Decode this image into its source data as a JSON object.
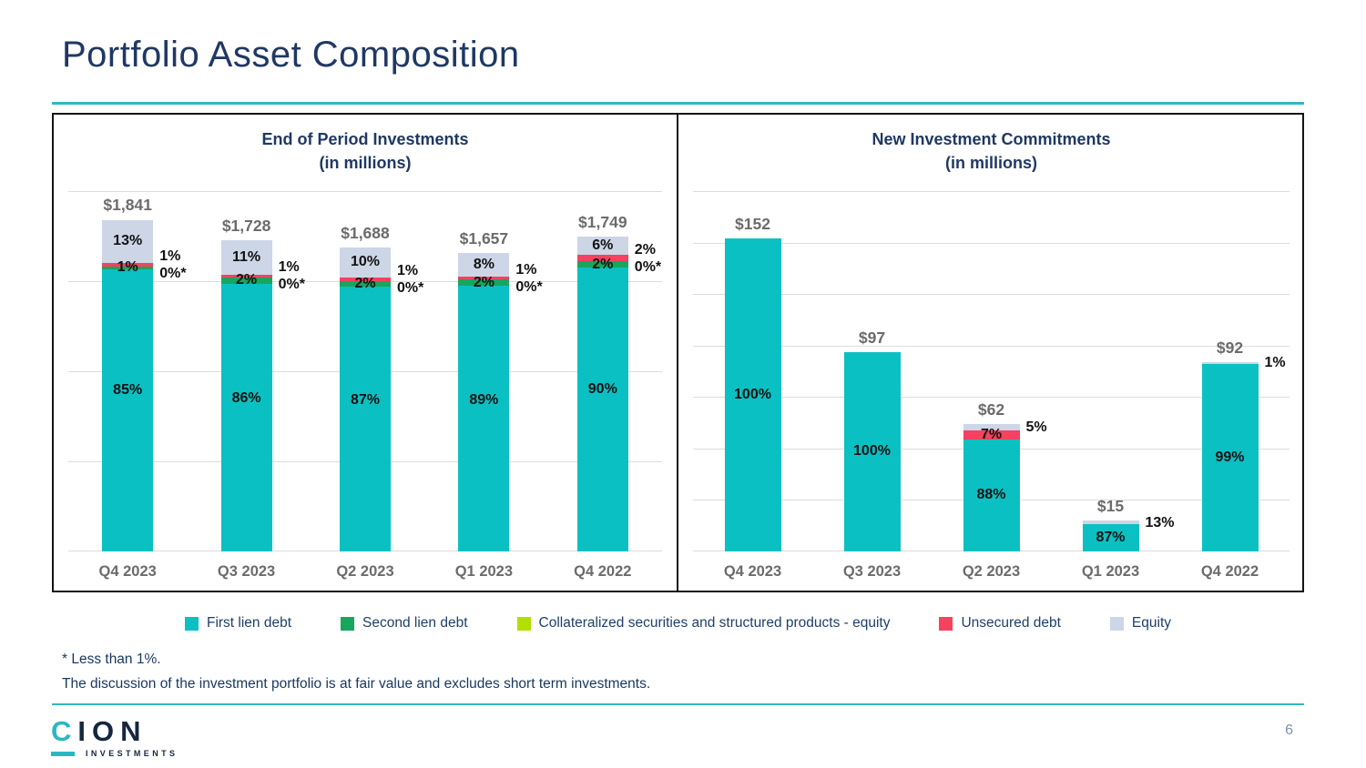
{
  "page": {
    "title": "Portfolio Asset Composition",
    "footnote1": "* Less than 1%.",
    "footnote2": "The discussion of the investment portfolio is at fair value and excludes short term investments.",
    "page_number": "6",
    "logo_c": "C",
    "logo_rest": "ION",
    "logo_sub": "INVESTMENTS"
  },
  "colors": {
    "first_lien": "#0bc0c3",
    "second_lien": "#18a55e",
    "collateralized": "#b2de00",
    "unsecured": "#f4425f",
    "equity": "#ccd6e6",
    "navy": "#1f3864",
    "gray_label": "#6b6b6b",
    "gridline": "#dcdcdc",
    "teal_rule": "#31b7c4"
  },
  "legend": [
    {
      "key": "first_lien",
      "label": "First lien debt"
    },
    {
      "key": "second_lien",
      "label": "Second lien debt"
    },
    {
      "key": "collateralized",
      "label": "Collateralized securities and structured products - equity"
    },
    {
      "key": "unsecured",
      "label": "Unsecured debt"
    },
    {
      "key": "equity",
      "label": "Equity"
    }
  ],
  "chart_data": [
    {
      "type": "bar",
      "stacked": true,
      "title": "End of Period Investments",
      "subtitle": "(in millions)",
      "ylim": [
        0,
        2000
      ],
      "gridline_step": 500,
      "grid": true,
      "legend_position": "bottom",
      "categories": [
        "Q4 2023",
        "Q3 2023",
        "Q2 2023",
        "Q1 2023",
        "Q4 2022"
      ],
      "bars": [
        {
          "category": "Q4 2023",
          "total_label": "$1,841",
          "total_value": 1841,
          "segments": [
            {
              "key": "first_lien",
              "pct": 85,
              "label": "85%"
            },
            {
              "key": "second_lien",
              "pct": 1,
              "label": "1%"
            },
            {
              "key": "collateralized",
              "pct": 0
            },
            {
              "key": "unsecured",
              "pct": 1
            },
            {
              "key": "equity",
              "pct": 13,
              "label": "13%"
            }
          ],
          "side_labels": [
            "1%",
            "0%*"
          ],
          "side_anchor": "unsecured"
        },
        {
          "category": "Q3 2023",
          "total_label": "$1,728",
          "total_value": 1728,
          "segments": [
            {
              "key": "first_lien",
              "pct": 86,
              "label": "86%"
            },
            {
              "key": "second_lien",
              "pct": 2,
              "label": "2%"
            },
            {
              "key": "collateralized",
              "pct": 0
            },
            {
              "key": "unsecured",
              "pct": 1
            },
            {
              "key": "equity",
              "pct": 11,
              "label": "11%"
            }
          ],
          "side_labels": [
            "1%",
            "0%*"
          ],
          "side_anchor": "unsecured"
        },
        {
          "category": "Q2 2023",
          "total_label": "$1,688",
          "total_value": 1688,
          "segments": [
            {
              "key": "first_lien",
              "pct": 87,
              "label": "87%"
            },
            {
              "key": "second_lien",
              "pct": 2,
              "label": "2%"
            },
            {
              "key": "collateralized",
              "pct": 0
            },
            {
              "key": "unsecured",
              "pct": 1
            },
            {
              "key": "equity",
              "pct": 10,
              "label": "10%"
            }
          ],
          "side_labels": [
            "1%",
            "0%*"
          ],
          "side_anchor": "unsecured"
        },
        {
          "category": "Q1 2023",
          "total_label": "$1,657",
          "total_value": 1657,
          "segments": [
            {
              "key": "first_lien",
              "pct": 89,
              "label": "89%"
            },
            {
              "key": "second_lien",
              "pct": 2,
              "label": "2%"
            },
            {
              "key": "collateralized",
              "pct": 0
            },
            {
              "key": "unsecured",
              "pct": 1
            },
            {
              "key": "equity",
              "pct": 8,
              "label": "8%"
            }
          ],
          "side_labels": [
            "1%",
            "0%*"
          ],
          "side_anchor": "unsecured"
        },
        {
          "category": "Q4 2022",
          "total_label": "$1,749",
          "total_value": 1749,
          "segments": [
            {
              "key": "first_lien",
              "pct": 90,
              "label": "90%"
            },
            {
              "key": "second_lien",
              "pct": 2,
              "label": "2%"
            },
            {
              "key": "collateralized",
              "pct": 0
            },
            {
              "key": "unsecured",
              "pct": 2
            },
            {
              "key": "equity",
              "pct": 6,
              "label": "6%"
            }
          ],
          "side_labels": [
            "2%",
            "0%*"
          ],
          "side_anchor": "unsecured"
        }
      ]
    },
    {
      "type": "bar",
      "stacked": true,
      "title": "New Investment Commitments",
      "subtitle": "(in millions)",
      "ylim": [
        0,
        175
      ],
      "gridline_step": 25,
      "grid": true,
      "legend_position": "bottom",
      "categories": [
        "Q4 2023",
        "Q3 2023",
        "Q2 2023",
        "Q1 2023",
        "Q4 2022"
      ],
      "bars": [
        {
          "category": "Q4 2023",
          "total_label": "$152",
          "total_value": 152,
          "segments": [
            {
              "key": "first_lien",
              "pct": 100,
              "label": "100%"
            }
          ],
          "side_labels": [],
          "side_anchor": null
        },
        {
          "category": "Q3 2023",
          "total_label": "$97",
          "total_value": 97,
          "segments": [
            {
              "key": "first_lien",
              "pct": 100,
              "label": "100%"
            }
          ],
          "side_labels": [],
          "side_anchor": null
        },
        {
          "category": "Q2 2023",
          "total_label": "$62",
          "total_value": 62,
          "segments": [
            {
              "key": "first_lien",
              "pct": 88,
              "label": "88%"
            },
            {
              "key": "unsecured",
              "pct": 7,
              "label": "7%"
            },
            {
              "key": "equity",
              "pct": 5
            }
          ],
          "side_labels": [
            "5%"
          ],
          "side_anchor": "equity"
        },
        {
          "category": "Q1 2023",
          "total_label": "$15",
          "total_value": 15,
          "segments": [
            {
              "key": "first_lien",
              "pct": 87,
              "label": "87%"
            },
            {
              "key": "equity",
              "pct": 13
            }
          ],
          "side_labels": [
            "13%"
          ],
          "side_anchor": "equity"
        },
        {
          "category": "Q4 2022",
          "total_label": "$92",
          "total_value": 92,
          "segments": [
            {
              "key": "first_lien",
              "pct": 99,
              "label": "99%"
            },
            {
              "key": "equity",
              "pct": 1
            }
          ],
          "side_labels": [
            "1%"
          ],
          "side_anchor": "equity"
        }
      ]
    }
  ]
}
